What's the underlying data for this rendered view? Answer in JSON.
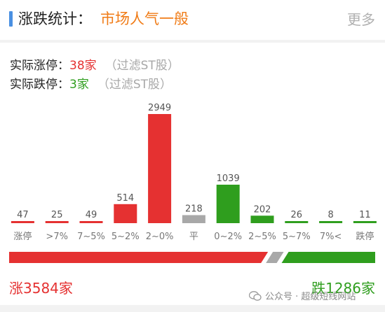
{
  "header": {
    "title": "涨跌统计：",
    "sentiment": "市场人气一般",
    "more_label": "更多"
  },
  "limit_up": {
    "label": "实际涨停：",
    "value": "38家",
    "note": "（过滤ST股）"
  },
  "limit_down": {
    "label": "实际跌停：",
    "value": "3家",
    "note": "（过滤ST股）"
  },
  "colors": {
    "up": "#e53131",
    "flat": "#a8a8a8",
    "down": "#2f9e1e",
    "sentiment": "#f07b16",
    "accent": "#4a90e2"
  },
  "chart_data": {
    "type": "bar",
    "categories": [
      "涨停",
      ">7%",
      "7~5%",
      "5~2%",
      "2~0%",
      "平",
      "0~2%",
      "2~5%",
      "5~7%",
      "7%<",
      "跌停"
    ],
    "values": [
      47,
      25,
      49,
      514,
      2949,
      218,
      1039,
      202,
      26,
      8,
      11
    ],
    "bar_colors": [
      "up",
      "up",
      "up",
      "up",
      "up",
      "flat",
      "down",
      "down",
      "down",
      "down",
      "down"
    ],
    "title": "",
    "xlabel": "",
    "ylabel": "",
    "ylim": [
      0,
      2949
    ],
    "grid": false
  },
  "totals": {
    "up_label": "涨3584家",
    "down_label": "跌1286家",
    "up_count": 3584,
    "flat_count": 218,
    "down_count": 1286
  },
  "watermark": {
    "text": "公众号 · 超级短线网站",
    "icon": "wechat-icon"
  }
}
